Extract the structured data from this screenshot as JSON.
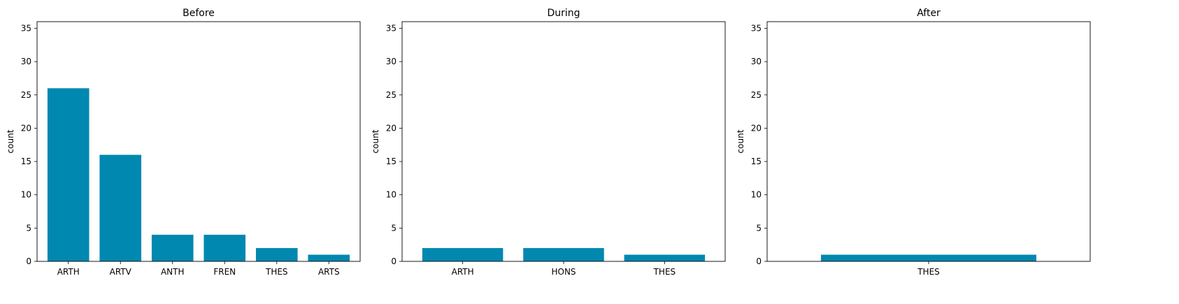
{
  "chart_data": [
    {
      "type": "bar",
      "title": "Before",
      "ylabel": "count",
      "xlabel": "",
      "ylim": [
        0,
        36
      ],
      "yticks": [
        0,
        5,
        10,
        15,
        20,
        25,
        30,
        35
      ],
      "categories": [
        "ARTH",
        "ARTV",
        "ANTH",
        "FREN",
        "THES",
        "ARTS"
      ],
      "values": [
        26,
        16,
        4,
        4,
        2,
        1
      ],
      "color": "#0088B0",
      "grid": false
    },
    {
      "type": "bar",
      "title": "During",
      "ylabel": "count",
      "xlabel": "",
      "ylim": [
        0,
        36
      ],
      "yticks": [
        0,
        5,
        10,
        15,
        20,
        25,
        30,
        35
      ],
      "categories": [
        "ARTH",
        "HONS",
        "THES"
      ],
      "values": [
        2,
        2,
        1
      ],
      "color": "#0088B0",
      "grid": false
    },
    {
      "type": "bar",
      "title": "After",
      "ylabel": "count",
      "xlabel": "",
      "ylim": [
        0,
        36
      ],
      "yticks": [
        0,
        5,
        10,
        15,
        20,
        25,
        30,
        35
      ],
      "categories": [
        "THES"
      ],
      "values": [
        1
      ],
      "color": "#0088B0",
      "grid": false
    }
  ]
}
